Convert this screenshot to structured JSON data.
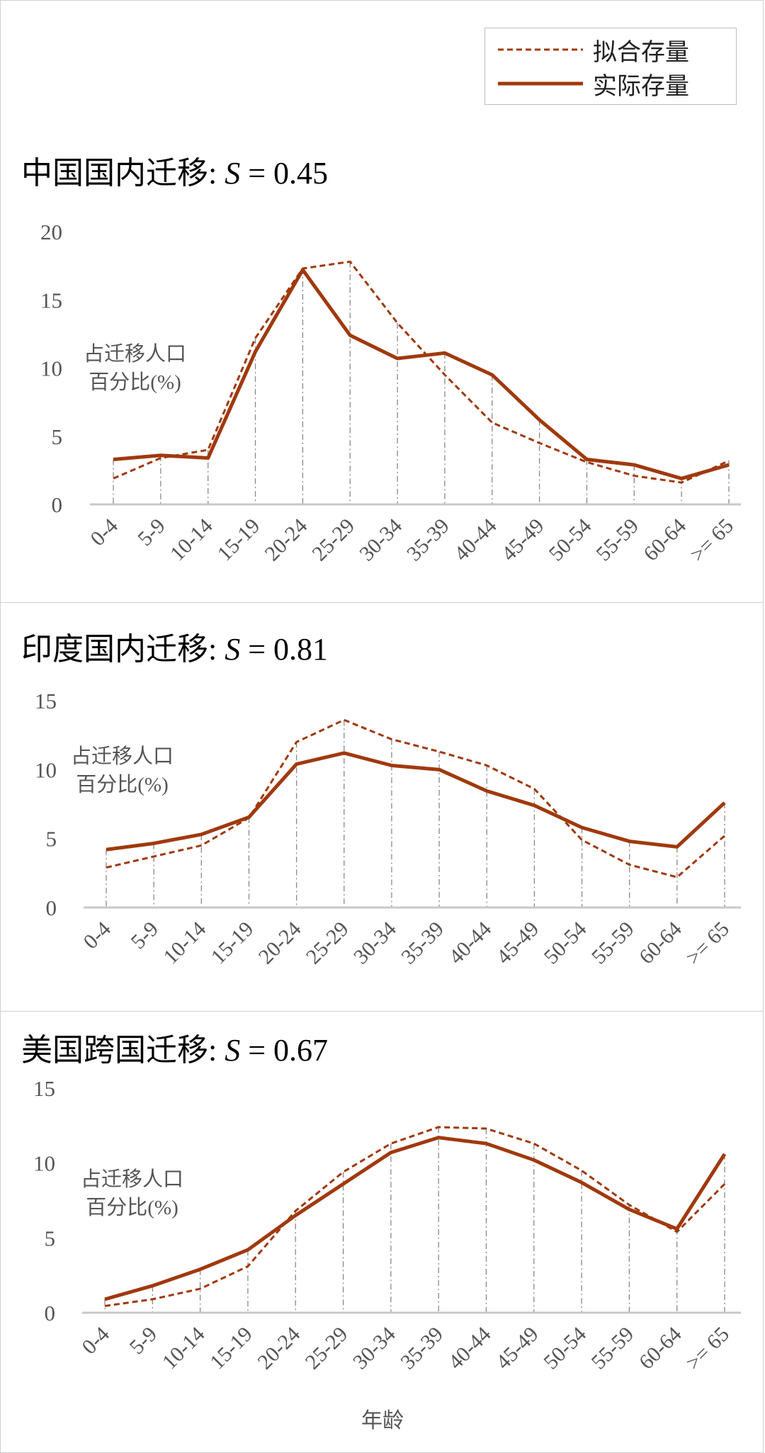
{
  "legend": {
    "fitted": "拟合存量",
    "actual": "实际存量"
  },
  "colors": {
    "line": "#A0390D",
    "grid": "#888888",
    "axis": "#c8c8c8",
    "tick": "#555555"
  },
  "xlabel": "年龄",
  "chart_data": [
    {
      "type": "line",
      "title_prefix": "中国国内迁移: ",
      "title_var": "S",
      "title_value": " = 0.45",
      "ylabel_line1": "占迁移人口",
      "ylabel_line2": "百分比(%)",
      "categories": [
        "0-4",
        "5-9",
        "10-14",
        "15-19",
        "20-24",
        "25-29",
        "30-34",
        "35-39",
        "40-44",
        "45-49",
        "50-54",
        "55-59",
        "60-64",
        ">= 65"
      ],
      "ylim": [
        0,
        20
      ],
      "yticks": [
        "0",
        "5",
        "10",
        "15",
        "20"
      ],
      "series": [
        {
          "name": "拟合存量",
          "style": "dashed",
          "values": [
            1.9,
            3.4,
            4.0,
            12.2,
            17.3,
            17.8,
            13.3,
            9.5,
            6.0,
            4.5,
            3.1,
            2.1,
            1.6,
            3.2
          ]
        },
        {
          "name": "实际存量",
          "style": "solid",
          "values": [
            3.3,
            3.6,
            3.4,
            11.2,
            17.2,
            12.4,
            10.7,
            11.1,
            9.5,
            6.2,
            3.3,
            2.9,
            1.9,
            2.9
          ]
        }
      ]
    },
    {
      "type": "line",
      "title_prefix": "印度国内迁移: ",
      "title_var": "S",
      "title_value": " = 0.81",
      "ylabel_line1": "占迁移人口",
      "ylabel_line2": "百分比(%)",
      "categories": [
        "0-4",
        "5-9",
        "10-14",
        "15-19",
        "20-24",
        "25-29",
        "30-34",
        "35-39",
        "40-44",
        "45-49",
        "50-54",
        "55-59",
        "60-64",
        ">= 65"
      ],
      "ylim": [
        0,
        15
      ],
      "yticks": [
        "0",
        "5",
        "10",
        "15"
      ],
      "series": [
        {
          "name": "拟合存量",
          "style": "dashed",
          "values": [
            2.9,
            3.7,
            4.5,
            6.5,
            12.0,
            13.6,
            12.2,
            11.3,
            10.3,
            8.6,
            4.9,
            3.1,
            2.2,
            5.2
          ]
        },
        {
          "name": "实际存量",
          "style": "solid",
          "values": [
            4.2,
            4.65,
            5.3,
            6.55,
            10.4,
            11.2,
            10.3,
            10.0,
            8.45,
            7.4,
            5.8,
            4.8,
            4.4,
            7.6
          ]
        }
      ]
    },
    {
      "type": "line",
      "title_prefix": "美国跨国迁移: ",
      "title_var": "S",
      "title_value": " = 0.67",
      "ylabel_line1": "占迁移人口",
      "ylabel_line2": "百分比(%)",
      "categories": [
        "0-4",
        "5-9",
        "10-14",
        "15-19",
        "20-24",
        "25-29",
        "30-34",
        "35-39",
        "40-44",
        "45-49",
        "50-54",
        "55-59",
        "60-64",
        ">= 65"
      ],
      "ylim": [
        0,
        15
      ],
      "yticks": [
        "0",
        "5",
        "10",
        "15"
      ],
      "series": [
        {
          "name": "拟合存量",
          "style": "dashed",
          "values": [
            0.45,
            0.9,
            1.6,
            3.1,
            6.8,
            9.4,
            11.3,
            12.4,
            12.3,
            11.3,
            9.5,
            7.2,
            5.4,
            8.6
          ]
        },
        {
          "name": "实际存量",
          "style": "solid",
          "values": [
            0.9,
            1.8,
            2.9,
            4.2,
            6.5,
            8.6,
            10.7,
            11.7,
            11.3,
            10.2,
            8.7,
            6.9,
            5.6,
            10.6
          ]
        }
      ]
    }
  ]
}
